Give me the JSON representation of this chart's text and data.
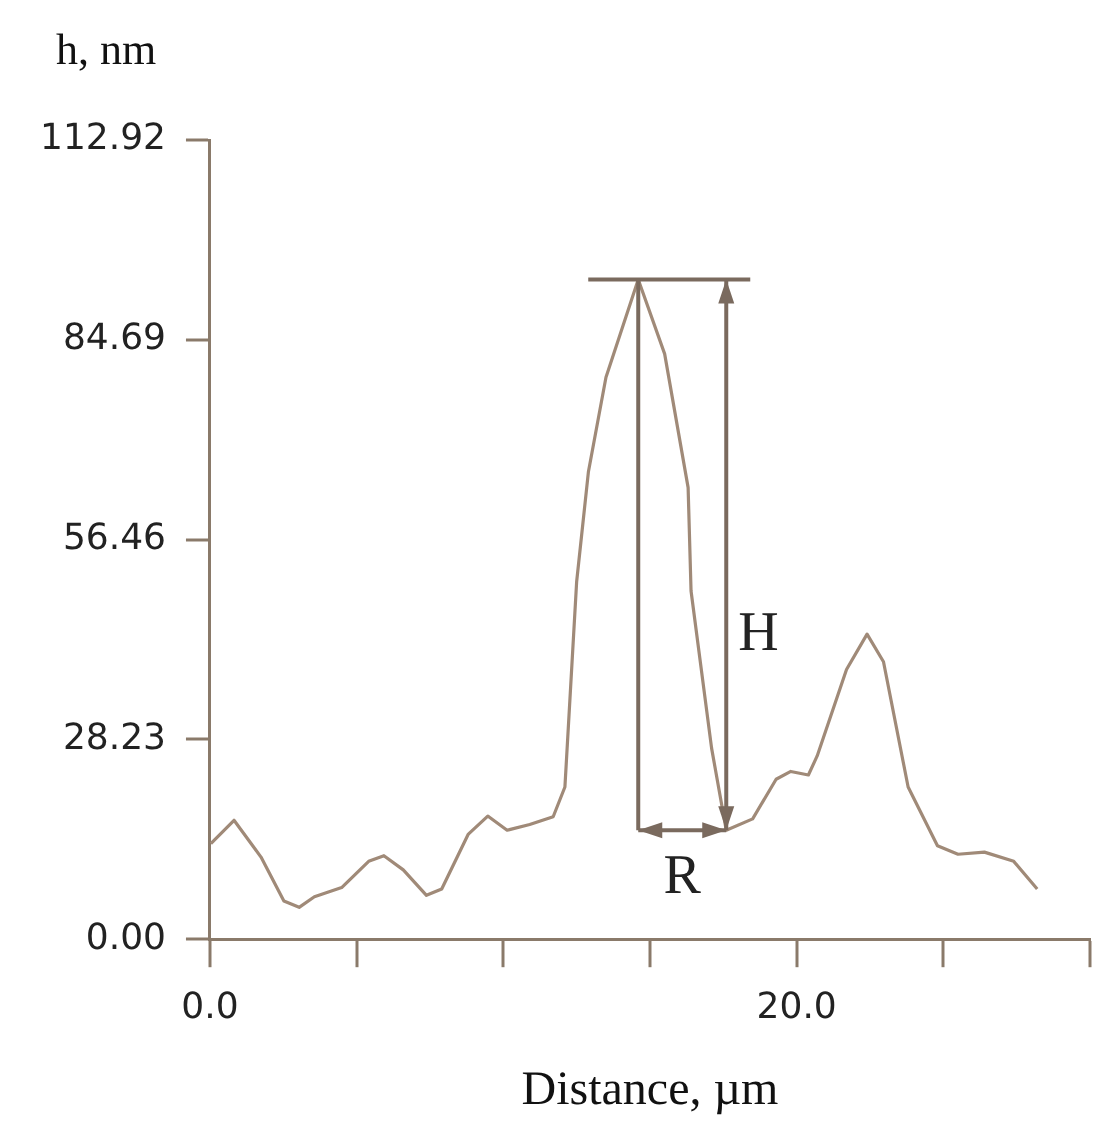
{
  "chart_data": {
    "type": "line",
    "xlabel": "Distance, µm",
    "ylabel": "h, nm",
    "x": [
      0.03,
      0.82,
      1.74,
      2.52,
      3.04,
      3.56,
      4.49,
      5.41,
      5.93,
      6.59,
      7.38,
      7.9,
      8.8,
      9.47,
      10.13,
      10.9,
      11.7,
      12.1,
      12.5,
      12.9,
      13.5,
      14.6,
      15.5,
      16.3,
      16.4,
      17.1,
      17.6,
      18.5,
      19.3,
      19.8,
      20.4,
      20.7,
      21.7,
      22.4,
      22.96,
      23.8,
      24.8,
      25.5,
      26.4,
      27.4,
      28.2
    ],
    "series": [
      {
        "color": "#a08a78",
        "values": [
          13.5,
          16.8,
          11.6,
          5.4,
          4.5,
          6.0,
          7.3,
          11.0,
          11.8,
          9.8,
          6.2,
          7.1,
          14.8,
          17.4,
          15.4,
          16.2,
          17.3,
          21.5,
          50.5,
          66.0,
          79.4,
          93.2,
          82.7,
          63.8,
          49.2,
          27.0,
          15.4,
          17.0,
          22.6,
          23.7,
          23.2,
          25.9,
          38.1,
          43.1,
          39.2,
          21.5,
          13.2,
          12.0,
          12.3,
          11.0,
          7.1
        ]
      }
    ],
    "xlim": [
      0,
      30
    ],
    "xticks": [
      {
        "value": 0,
        "label": "0.0"
      },
      {
        "value": 5,
        "label": null
      },
      {
        "value": 10,
        "label": null
      },
      {
        "value": 15,
        "label": null
      },
      {
        "value": 20,
        "label": "20.0"
      },
      {
        "value": 25,
        "label": null
      },
      {
        "value": 30,
        "label": null
      }
    ],
    "ylim": [
      0,
      112.92
    ],
    "yticks": [
      {
        "value": 0,
        "label": "0.00"
      },
      28.23,
      56.46,
      84.69,
      112.92
    ],
    "annotations": [
      "H",
      "R"
    ],
    "grid": false,
    "legend": false,
    "marker": "none",
    "line_style": "solid"
  }
}
